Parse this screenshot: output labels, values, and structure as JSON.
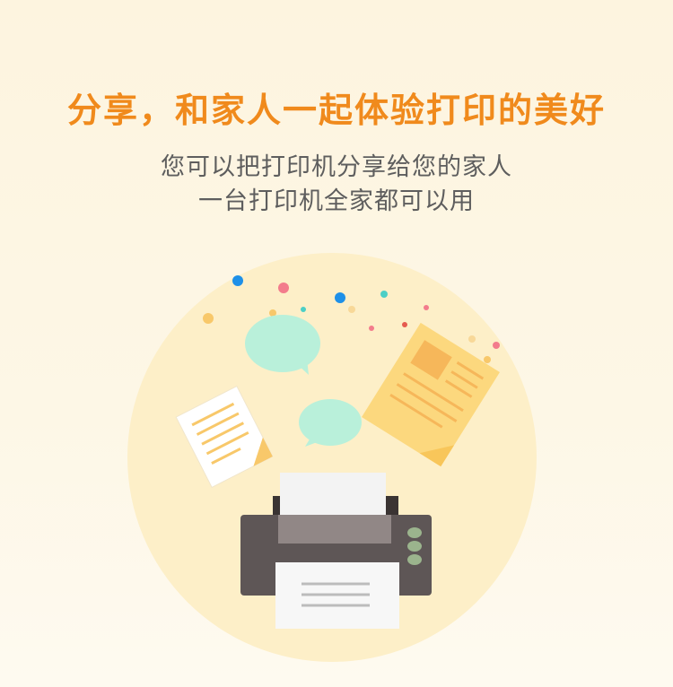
{
  "headline": "分享，和家人一起体验打印的美好",
  "description": {
    "line1": "您可以把打印机分享给您的家人",
    "line2": "一台打印机全家都可以用"
  },
  "illustration": {
    "icons": [
      "printer-icon",
      "chat-bubble-icon",
      "document-icon",
      "photo-document-icon"
    ],
    "colors": {
      "circle": "#fdefc8",
      "bubble": "#b9f0da",
      "document": "#fcd87e",
      "printer_body": "#5e5656",
      "printer_tray": "#918786",
      "printer_buttons": "#9bb48d",
      "accent_text": "#f08a1c"
    }
  }
}
